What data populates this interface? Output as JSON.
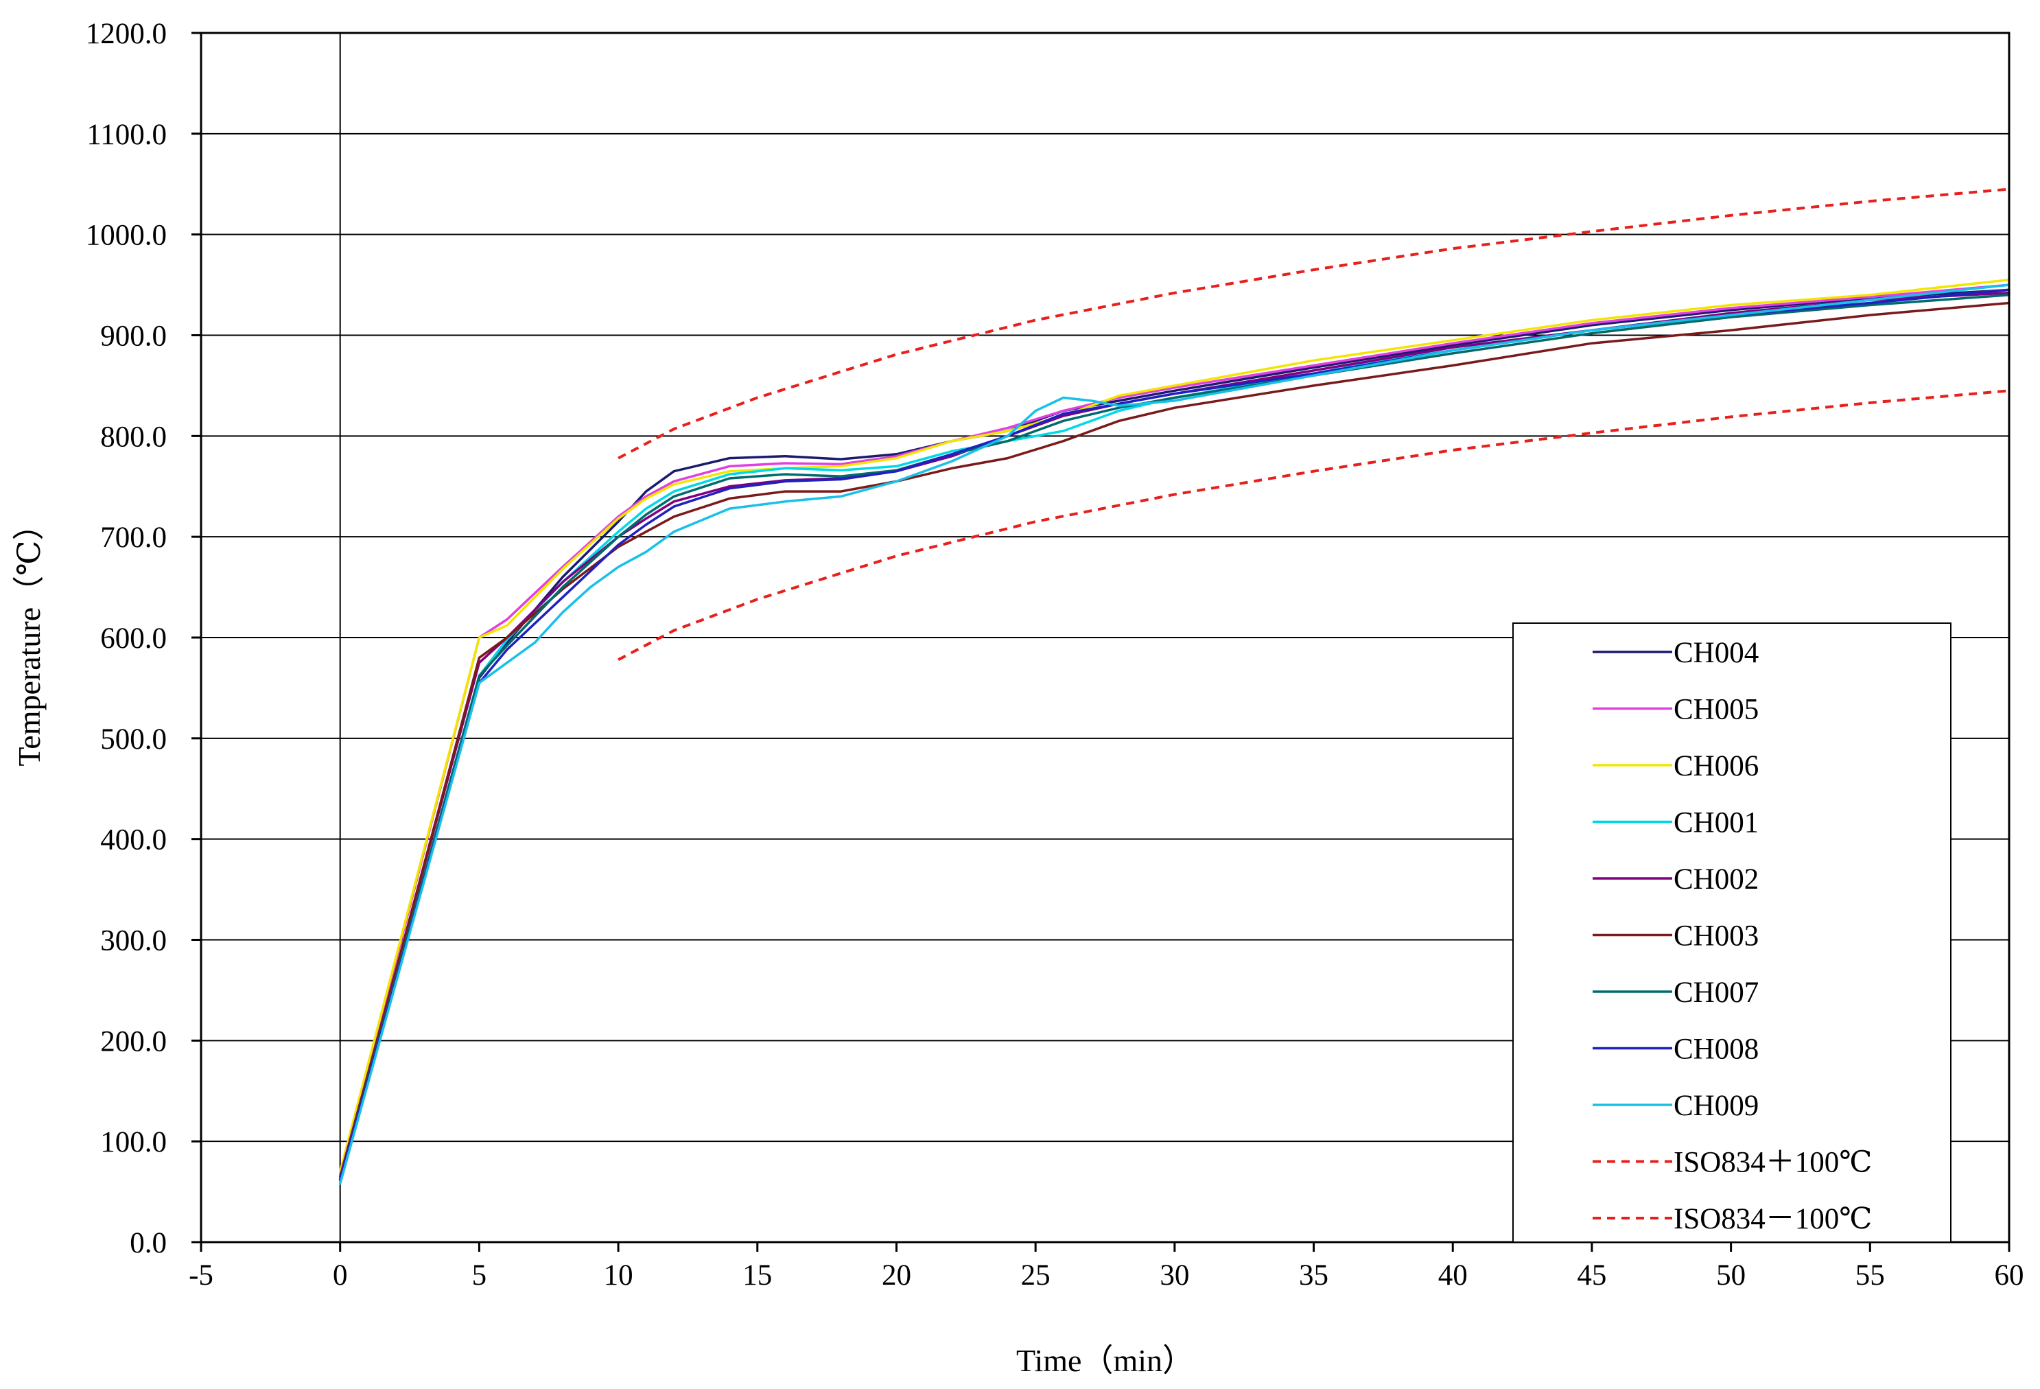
{
  "chart_data": {
    "type": "line",
    "title": "",
    "xlabel": "Time（min）",
    "ylabel": "Temperature（℃）",
    "xlim": [
      -5,
      60
    ],
    "ylim": [
      0,
      1200
    ],
    "x_ticks": [
      "-5",
      "0",
      "5",
      "10",
      "15",
      "20",
      "25",
      "30",
      "35",
      "40",
      "45",
      "50",
      "55",
      "60"
    ],
    "y_ticks": [
      "0.0",
      "100.0",
      "200.0",
      "300.0",
      "400.0",
      "500.0",
      "600.0",
      "700.0",
      "800.0",
      "900.0",
      "1000.0",
      "1100.0",
      "1200.0"
    ],
    "grid": "horizontal",
    "legend_position": "bottom-right",
    "series": [
      {
        "name": "CH004",
        "color": "#1a1a6e",
        "dash": "solid",
        "x": [
          0,
          5,
          6,
          8,
          10,
          11,
          12,
          14,
          16,
          18,
          20,
          22,
          24,
          26,
          28,
          30,
          35,
          40,
          45,
          50,
          55,
          60
        ],
        "y": [
          62,
          560,
          595,
          660,
          715,
          745,
          765,
          778,
          780,
          777,
          782,
          795,
          805,
          825,
          835,
          845,
          868,
          890,
          910,
          925,
          937,
          945
        ]
      },
      {
        "name": "CH005",
        "color": "#e040e0",
        "dash": "solid",
        "x": [
          0,
          5,
          6,
          8,
          10,
          11,
          12,
          14,
          16,
          18,
          20,
          22,
          24,
          26,
          28,
          30,
          35,
          40,
          45,
          50,
          55,
          60
        ],
        "y": [
          65,
          600,
          618,
          670,
          720,
          740,
          755,
          770,
          773,
          772,
          780,
          795,
          808,
          825,
          838,
          848,
          870,
          892,
          912,
          927,
          938,
          950
        ]
      },
      {
        "name": "CH006",
        "color": "#f2e600",
        "dash": "solid",
        "x": [
          0,
          5,
          6,
          8,
          10,
          11,
          12,
          14,
          16,
          18,
          20,
          22,
          24,
          26,
          28,
          30,
          35,
          40,
          45,
          50,
          55,
          60
        ],
        "y": [
          70,
          600,
          612,
          668,
          718,
          738,
          752,
          765,
          768,
          770,
          778,
          795,
          805,
          820,
          840,
          850,
          875,
          895,
          915,
          930,
          940,
          955
        ]
      },
      {
        "name": "CH001",
        "color": "#00d8e8",
        "dash": "solid",
        "x": [
          0,
          5,
          6,
          8,
          10,
          11,
          12,
          14,
          16,
          18,
          20,
          22,
          24,
          26,
          28,
          30,
          35,
          40,
          45,
          50,
          55,
          60
        ],
        "y": [
          60,
          562,
          598,
          655,
          705,
          728,
          745,
          762,
          768,
          766,
          770,
          785,
          795,
          805,
          825,
          838,
          862,
          888,
          905,
          920,
          932,
          945
        ]
      },
      {
        "name": "CH002",
        "color": "#800080",
        "dash": "solid",
        "x": [
          0,
          5,
          6,
          8,
          10,
          11,
          12,
          14,
          16,
          18,
          20,
          22,
          24,
          26,
          28,
          30,
          35,
          40,
          45,
          50,
          55,
          60
        ],
        "y": [
          65,
          575,
          600,
          655,
          700,
          718,
          735,
          750,
          756,
          758,
          765,
          780,
          800,
          820,
          832,
          842,
          865,
          888,
          905,
          922,
          935,
          942
        ]
      },
      {
        "name": "CH003",
        "color": "#7a1a1a",
        "dash": "solid",
        "x": [
          0,
          5,
          6,
          8,
          10,
          11,
          12,
          14,
          16,
          18,
          20,
          22,
          24,
          26,
          28,
          30,
          35,
          40,
          45,
          50,
          55,
          60
        ],
        "y": [
          62,
          580,
          600,
          648,
          690,
          705,
          720,
          738,
          745,
          745,
          755,
          768,
          778,
          795,
          815,
          828,
          850,
          870,
          892,
          905,
          920,
          932
        ]
      },
      {
        "name": "CH007",
        "color": "#006b6b",
        "dash": "solid",
        "x": [
          0,
          5,
          6,
          8,
          10,
          11,
          12,
          14,
          16,
          18,
          20,
          22,
          24,
          26,
          28,
          30,
          35,
          40,
          45,
          50,
          55,
          60
        ],
        "y": [
          62,
          562,
          592,
          650,
          700,
          722,
          740,
          758,
          762,
          760,
          766,
          782,
          795,
          815,
          828,
          838,
          860,
          882,
          902,
          918,
          930,
          940
        ]
      },
      {
        "name": "CH008",
        "color": "#2020c0",
        "dash": "solid",
        "x": [
          0,
          5,
          6,
          8,
          10,
          11,
          12,
          14,
          16,
          18,
          20,
          22,
          24,
          26,
          28,
          30,
          35,
          40,
          45,
          50,
          55,
          60
        ],
        "y": [
          62,
          555,
          588,
          640,
          692,
          712,
          730,
          748,
          755,
          757,
          765,
          782,
          800,
          822,
          832,
          842,
          862,
          885,
          905,
          920,
          932,
          945
        ]
      },
      {
        "name": "CH009",
        "color": "#18c0e8",
        "dash": "solid",
        "x": [
          0,
          5,
          6,
          7,
          8,
          9,
          10,
          11,
          12,
          14,
          16,
          18,
          20,
          22,
          24,
          25,
          26,
          27,
          28,
          30,
          35,
          40,
          45,
          50,
          55,
          60
        ],
        "y": [
          58,
          555,
          575,
          595,
          625,
          650,
          670,
          685,
          705,
          728,
          735,
          740,
          755,
          775,
          800,
          825,
          838,
          835,
          830,
          835,
          860,
          885,
          905,
          920,
          935,
          950
        ]
      },
      {
        "name": "ISO834＋100℃",
        "color": "#e8201c",
        "dash": "dashed",
        "x": [
          10,
          12,
          15,
          20,
          25,
          30,
          35,
          40,
          45,
          50,
          55,
          60
        ],
        "y": [
          778,
          807,
          838,
          881,
          915,
          942,
          965,
          986,
          1003,
          1019,
          1033,
          1045
        ]
      },
      {
        "name": "ISO834－100℃",
        "color": "#e8201c",
        "dash": "dashed",
        "x": [
          10,
          12,
          15,
          20,
          25,
          30,
          35,
          40,
          45,
          50,
          55,
          60
        ],
        "y": [
          578,
          607,
          638,
          681,
          715,
          742,
          765,
          786,
          803,
          819,
          833,
          845
        ]
      }
    ]
  }
}
